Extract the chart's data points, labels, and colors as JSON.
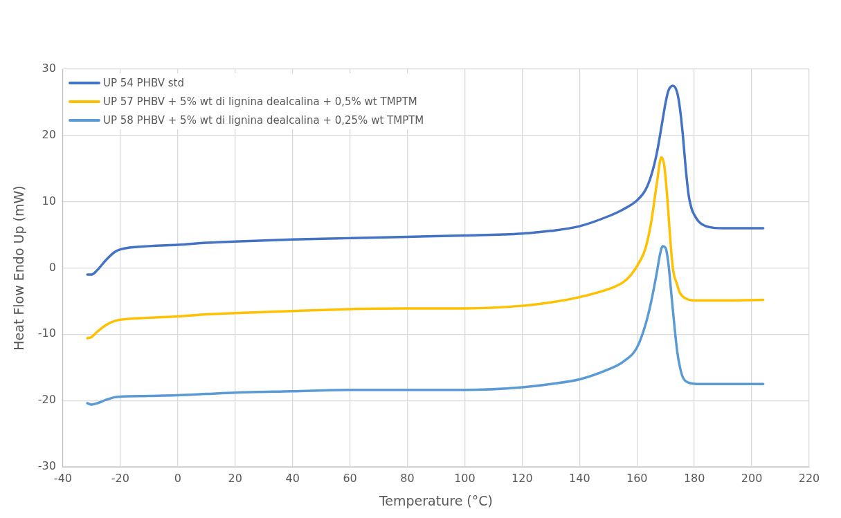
{
  "chart_data": {
    "type": "line",
    "xlabel": "Temperature (°C)",
    "ylabel": "Heat Flow Endo Up (mW)",
    "xlim": [
      -40,
      220
    ],
    "xticks": [
      -40,
      -20,
      0,
      20,
      40,
      60,
      80,
      100,
      120,
      140,
      160,
      180,
      200,
      220
    ],
    "ylim": [
      -30,
      30
    ],
    "yticks": [
      -30,
      -20,
      -10,
      0,
      10,
      20,
      30
    ],
    "grid": true,
    "legend": "top left",
    "marker": "none",
    "line_style": "solid",
    "series": [
      {
        "name": "UP 54 PHBV std",
        "color": "#4472c4",
        "x": [
          -31.5,
          -30,
          -28,
          -25,
          -22,
          -20,
          -10,
          0,
          10,
          20,
          40,
          60,
          80,
          100,
          120,
          130,
          140,
          150,
          155,
          160,
          163,
          165,
          167,
          169,
          170,
          171,
          172.5,
          174,
          175,
          176,
          177,
          178,
          179,
          180,
          182,
          185,
          190,
          204
        ],
        "values": [
          -1,
          -1,
          -0.3,
          1.2,
          2.4,
          2.8,
          3.3,
          3.5,
          3.8,
          4,
          4.3,
          4.5,
          4.7,
          4.9,
          5.2,
          5.6,
          6.3,
          7.8,
          8.8,
          10.2,
          11.8,
          14,
          17.5,
          22.5,
          25,
          26.8,
          27.5,
          26.5,
          24,
          20,
          15,
          11,
          9,
          8,
          6.8,
          6.2,
          6,
          6
        ]
      },
      {
        "name": "UP 57 PHBV + 5% wt di lignina dealcalina + 0,5% wt TMPTM",
        "color": "#ffc000",
        "x": [
          -31.5,
          -30,
          -28,
          -25,
          -22,
          -20,
          -10,
          0,
          10,
          20,
          40,
          60,
          80,
          100,
          120,
          130,
          140,
          150,
          155,
          158,
          161,
          163,
          165,
          167,
          168.5,
          169.5,
          170.5,
          171.5,
          172.5,
          174,
          175,
          177,
          180,
          190,
          204
        ],
        "values": [
          -10.6,
          -10.4,
          -9.6,
          -8.6,
          -8,
          -7.8,
          -7.5,
          -7.3,
          -7,
          -6.8,
          -6.5,
          -6.2,
          -6.1,
          -6.1,
          -5.7,
          -5.2,
          -4.4,
          -3.2,
          -2.2,
          -1,
          1,
          3,
          7,
          13,
          16.7,
          15.5,
          11,
          5,
          0,
          -2.5,
          -3.8,
          -4.6,
          -4.9,
          -4.9,
          -4.8
        ]
      },
      {
        "name": "UP 58 PHBV + 5% wt di lignina dealcalina + 0,25% wt TMPTM",
        "color": "#5b9bd5",
        "x": [
          -31.5,
          -30,
          -28,
          -25,
          -22,
          -20,
          -10,
          0,
          10,
          20,
          40,
          60,
          80,
          100,
          120,
          130,
          140,
          150,
          155,
          160,
          163,
          165,
          167,
          168,
          169,
          170,
          171,
          172,
          173,
          174,
          175,
          176,
          178,
          182,
          190,
          204
        ],
        "values": [
          -20.4,
          -20.6,
          -20.4,
          -19.9,
          -19.5,
          -19.4,
          -19.3,
          -19.2,
          -19,
          -18.8,
          -18.6,
          -18.4,
          -18.4,
          -18.4,
          -18,
          -17.5,
          -16.8,
          -15.3,
          -14.2,
          -12,
          -8.5,
          -5,
          -0.5,
          2,
          3.3,
          3,
          0.5,
          -4,
          -8.5,
          -12.5,
          -15,
          -16.5,
          -17.3,
          -17.5,
          -17.5,
          -17.5
        ]
      }
    ]
  }
}
